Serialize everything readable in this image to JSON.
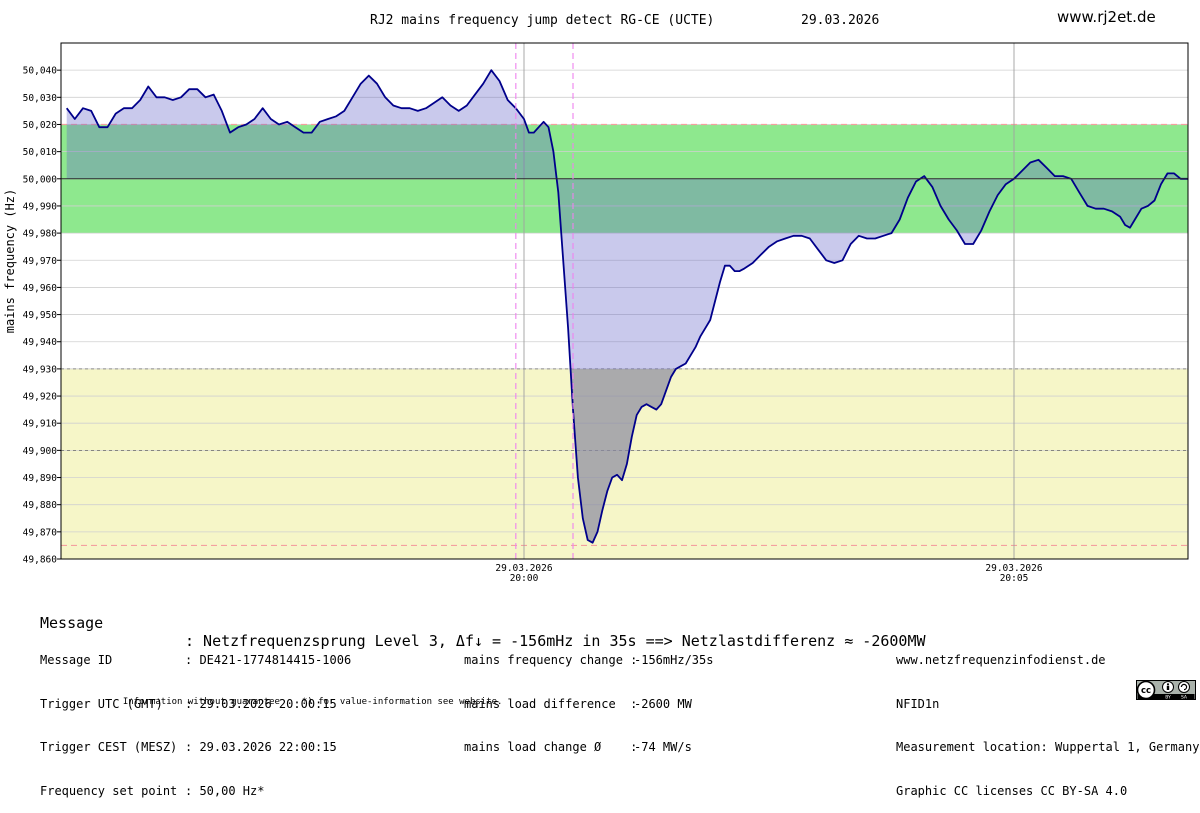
{
  "header": {
    "title": "RJ2 mains frequency jump detect RG-CE (UCTE)",
    "date": "29.03.2026",
    "site": "www.rj2et.de"
  },
  "chart_data": {
    "type": "line",
    "ylabel": "mains frequency (Hz)",
    "ylim": [
      49.86,
      50.05
    ],
    "yticks": [
      "50,040",
      "50,030",
      "50,020",
      "50,010",
      "50,000",
      "49,990",
      "49,980",
      "49,970",
      "49,960",
      "49,950",
      "49,940",
      "49,930",
      "49,920",
      "49,910",
      "49,900",
      "49,890",
      "49,880",
      "49,870",
      "49,860"
    ],
    "x_range_seconds": [
      -280,
      380
    ],
    "xticks": [
      {
        "t": 0,
        "date": "29.03.2026",
        "time": "20:00"
      },
      {
        "t": 300,
        "date": "29.03.2026",
        "time": "20:05"
      }
    ],
    "markers_seconds": [
      -5,
      30
    ],
    "bands": [
      {
        "from": 49.98,
        "to": 50.02,
        "color": "#8ee88e"
      },
      {
        "from": 49.86,
        "to": 49.93,
        "color": "#f6f6c8"
      }
    ],
    "reference_lines": [
      50.02,
      49.93,
      49.9,
      49.865
    ],
    "setpoint": 50.0,
    "series": [
      {
        "color": "#00008b",
        "points": [
          [
            -280,
            50.026
          ],
          [
            -275,
            50.022
          ],
          [
            -270,
            50.026
          ],
          [
            -265,
            50.025
          ],
          [
            -260,
            50.019
          ],
          [
            -255,
            50.019
          ],
          [
            -250,
            50.024
          ],
          [
            -245,
            50.026
          ],
          [
            -240,
            50.026
          ],
          [
            -235,
            50.029
          ],
          [
            -230,
            50.034
          ],
          [
            -225,
            50.03
          ],
          [
            -220,
            50.03
          ],
          [
            -215,
            50.029
          ],
          [
            -210,
            50.03
          ],
          [
            -205,
            50.033
          ],
          [
            -200,
            50.033
          ],
          [
            -195,
            50.03
          ],
          [
            -190,
            50.031
          ],
          [
            -185,
            50.025
          ],
          [
            -180,
            50.017
          ],
          [
            -175,
            50.019
          ],
          [
            -170,
            50.02
          ],
          [
            -165,
            50.022
          ],
          [
            -160,
            50.026
          ],
          [
            -155,
            50.022
          ],
          [
            -150,
            50.02
          ],
          [
            -145,
            50.021
          ],
          [
            -140,
            50.019
          ],
          [
            -135,
            50.017
          ],
          [
            -130,
            50.017
          ],
          [
            -125,
            50.021
          ],
          [
            -120,
            50.022
          ],
          [
            -115,
            50.023
          ],
          [
            -110,
            50.025
          ],
          [
            -105,
            50.03
          ],
          [
            -100,
            50.035
          ],
          [
            -95,
            50.038
          ],
          [
            -90,
            50.035
          ],
          [
            -85,
            50.03
          ],
          [
            -80,
            50.027
          ],
          [
            -75,
            50.026
          ],
          [
            -70,
            50.026
          ],
          [
            -65,
            50.025
          ],
          [
            -60,
            50.026
          ],
          [
            -55,
            50.028
          ],
          [
            -50,
            50.03
          ],
          [
            -45,
            50.027
          ],
          [
            -40,
            50.025
          ],
          [
            -35,
            50.027
          ],
          [
            -30,
            50.031
          ],
          [
            -25,
            50.035
          ],
          [
            -20,
            50.04
          ],
          [
            -15,
            50.036
          ],
          [
            -10,
            50.029
          ],
          [
            -5,
            50.026
          ],
          [
            0,
            50.022
          ],
          [
            3,
            50.017
          ],
          [
            6,
            50.017
          ],
          [
            9,
            50.019
          ],
          [
            12,
            50.021
          ],
          [
            15,
            50.019
          ],
          [
            18,
            50.01
          ],
          [
            21,
            49.995
          ],
          [
            24,
            49.97
          ],
          [
            27,
            49.945
          ],
          [
            30,
            49.915
          ],
          [
            33,
            49.89
          ],
          [
            36,
            49.875
          ],
          [
            39,
            49.867
          ],
          [
            42,
            49.866
          ],
          [
            45,
            49.87
          ],
          [
            48,
            49.878
          ],
          [
            51,
            49.885
          ],
          [
            54,
            49.89
          ],
          [
            57,
            49.891
          ],
          [
            60,
            49.889
          ],
          [
            63,
            49.895
          ],
          [
            66,
            49.905
          ],
          [
            69,
            49.913
          ],
          [
            72,
            49.916
          ],
          [
            75,
            49.917
          ],
          [
            78,
            49.916
          ],
          [
            81,
            49.915
          ],
          [
            84,
            49.917
          ],
          [
            87,
            49.922
          ],
          [
            90,
            49.927
          ],
          [
            93,
            49.93
          ],
          [
            96,
            49.931
          ],
          [
            99,
            49.932
          ],
          [
            102,
            49.935
          ],
          [
            105,
            49.938
          ],
          [
            108,
            49.942
          ],
          [
            111,
            49.945
          ],
          [
            114,
            49.948
          ],
          [
            117,
            49.955
          ],
          [
            120,
            49.962
          ],
          [
            123,
            49.968
          ],
          [
            126,
            49.968
          ],
          [
            129,
            49.966
          ],
          [
            132,
            49.966
          ],
          [
            135,
            49.967
          ],
          [
            140,
            49.969
          ],
          [
            145,
            49.972
          ],
          [
            150,
            49.975
          ],
          [
            155,
            49.977
          ],
          [
            160,
            49.978
          ],
          [
            165,
            49.979
          ],
          [
            170,
            49.979
          ],
          [
            175,
            49.978
          ],
          [
            180,
            49.974
          ],
          [
            185,
            49.97
          ],
          [
            190,
            49.969
          ],
          [
            195,
            49.97
          ],
          [
            200,
            49.976
          ],
          [
            205,
            49.979
          ],
          [
            210,
            49.978
          ],
          [
            215,
            49.978
          ],
          [
            220,
            49.979
          ],
          [
            225,
            49.98
          ],
          [
            230,
            49.985
          ],
          [
            235,
            49.993
          ],
          [
            240,
            49.999
          ],
          [
            245,
            50.001
          ],
          [
            250,
            49.997
          ],
          [
            255,
            49.99
          ],
          [
            260,
            49.985
          ],
          [
            265,
            49.981
          ],
          [
            270,
            49.976
          ],
          [
            275,
            49.976
          ],
          [
            280,
            49.981
          ],
          [
            285,
            49.988
          ],
          [
            290,
            49.994
          ],
          [
            295,
            49.998
          ],
          [
            300,
            50.0
          ],
          [
            305,
            50.003
          ],
          [
            310,
            50.006
          ],
          [
            315,
            50.007
          ],
          [
            320,
            50.004
          ],
          [
            325,
            50.001
          ],
          [
            330,
            50.001
          ],
          [
            335,
            50.0
          ],
          [
            340,
            49.995
          ],
          [
            345,
            49.99
          ],
          [
            350,
            49.989
          ],
          [
            355,
            49.989
          ],
          [
            360,
            49.988
          ],
          [
            365,
            49.986
          ],
          [
            368,
            49.983
          ],
          [
            371,
            49.982
          ],
          [
            374,
            49.985
          ],
          [
            378,
            49.989
          ],
          [
            382,
            49.99
          ],
          [
            386,
            49.992
          ],
          [
            390,
            49.998
          ],
          [
            394,
            50.002
          ],
          [
            398,
            50.002
          ],
          [
            402,
            50.0
          ],
          [
            406,
            50.0
          ],
          [
            410,
            49.999
          ],
          [
            414,
            49.999
          ],
          [
            418,
            50.0
          ]
        ]
      }
    ]
  },
  "message": {
    "label": "Message",
    "text": ": Netzfrequenzsprung Level 3, Δf↓ = -156mHz in 35s ==> Netzlastdifferenz ≈ -2600MW"
  },
  "info_left": [
    {
      "key": "Message ID",
      "value": ": DE421-1774814415-1006"
    },
    {
      "key": "Trigger UTC (GMT)",
      "value": ": 29.03.2026 20:00:15"
    },
    {
      "key": "Trigger CEST (MESZ)",
      "value": ": 29.03.2026 22:00:15"
    },
    {
      "key": "Frequency set point",
      "value": ": 50,00 Hz*"
    }
  ],
  "info_mid": [
    {
      "key": "mains frequency change :",
      "value": "-156mHz/35s"
    },
    {
      "key": "mains load difference  :",
      "value": "-2600 MW"
    },
    {
      "key": "mains load change Ø    :",
      "value": "-74 MW/s"
    }
  ],
  "info_right": [
    "www.netzfrequenzinfodienst.de",
    "NFID1n",
    "Measurement location: Wuppertal 1, Germany",
    "Graphic CC licenses CC BY-SA 4.0"
  ],
  "disclaimer": [
    "Information without guarantee",
    "*) for value-information see website."
  ],
  "cc_badge": {
    "text": "cc",
    "by": "BY",
    "sa": "SA"
  }
}
